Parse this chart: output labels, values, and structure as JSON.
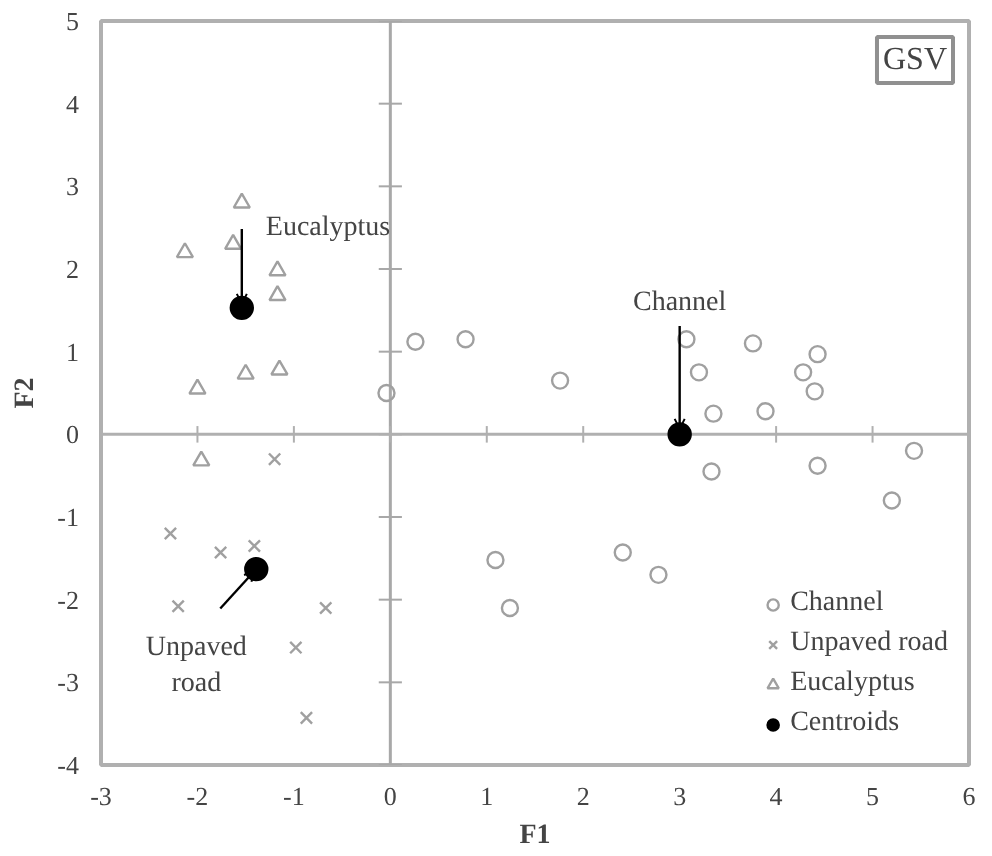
{
  "chart_data": {
    "type": "scatter",
    "title": "GSV",
    "xlabel": "F1",
    "ylabel": "F2",
    "xlim": [
      -3,
      6
    ],
    "ylim": [
      -4,
      5
    ],
    "xticks": [
      -3,
      -2,
      -1,
      0,
      1,
      2,
      3,
      4,
      5,
      6
    ],
    "yticks": [
      -4,
      -3,
      -2,
      -1,
      0,
      1,
      2,
      3,
      4,
      5
    ],
    "grid": false,
    "legend": "bottom right",
    "ref_lines": [
      {
        "axis": "x",
        "value": 0,
        "color": "#a8a8a8"
      },
      {
        "axis": "y",
        "value": 0,
        "color": "#b0b0b0"
      }
    ],
    "annotations": [
      {
        "text": "Eucalyptus",
        "x": -1.54,
        "y": 1.53
      },
      {
        "text": "Channel",
        "x": 3.0,
        "y": 0.0
      },
      {
        "text": "Unpaved\nroad",
        "x": -1.39,
        "y": -1.63
      }
    ],
    "series": [
      {
        "name": "Channel",
        "color": "#a0a0a0",
        "marker": "circle",
        "x": [
          -0.04,
          0.26,
          0.78,
          1.76,
          3.07,
          3.2,
          3.76,
          4.43,
          4.28,
          4.4,
          3.35,
          3.89,
          3.33,
          4.43,
          5.43,
          5.2,
          2.41,
          2.78,
          1.09,
          1.24
        ],
        "values": [
          0.5,
          1.12,
          1.15,
          0.65,
          1.15,
          0.75,
          1.1,
          0.97,
          0.75,
          0.52,
          0.25,
          0.28,
          -0.45,
          -0.38,
          -0.2,
          -0.8,
          -1.43,
          -1.7,
          -1.52,
          -2.1
        ]
      },
      {
        "name": "Unpaved road",
        "color": "#a0a0a0",
        "marker": "cross",
        "x": [
          -1.2,
          -2.28,
          -1.76,
          -1.41,
          -2.2,
          -0.67,
          -0.98,
          -0.87
        ],
        "values": [
          -0.3,
          -1.2,
          -1.43,
          -1.35,
          -2.08,
          -2.1,
          -2.58,
          -3.43
        ]
      },
      {
        "name": "Eucalyptus",
        "color": "#a0a0a0",
        "marker": "triangle",
        "x": [
          -1.54,
          -1.63,
          -2.13,
          -1.17,
          -1.17,
          -1.5,
          -1.15,
          -2.0,
          -1.96
        ],
        "values": [
          2.8,
          2.3,
          2.2,
          1.98,
          1.68,
          0.73,
          0.78,
          0.55,
          -0.32
        ]
      },
      {
        "name": "Centroids",
        "color": "#000000",
        "marker": "circle",
        "x": [
          -1.54,
          3.0,
          -1.39
        ],
        "values": [
          1.53,
          0.0,
          -1.63
        ]
      }
    ]
  }
}
